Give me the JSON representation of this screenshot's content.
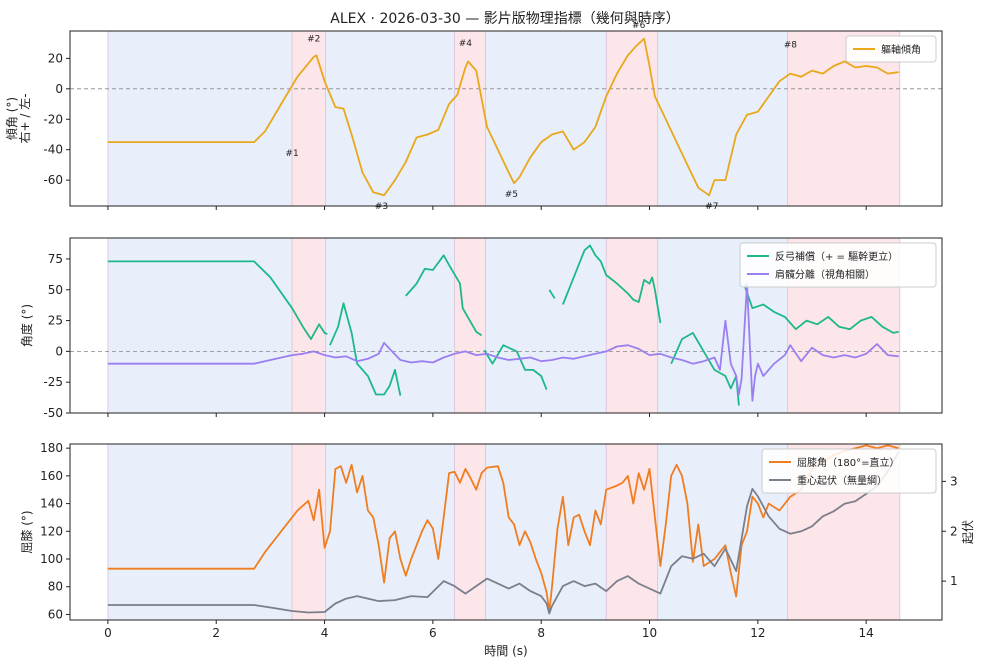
{
  "title": "ALEX · 2026-03-30 — 影片版物理指標（幾何與時序）",
  "chart_data": [
    {
      "type": "line",
      "ylabel": "傾角 (°)\n右+ / 左-",
      "ylim": [
        -77,
        38
      ],
      "yticks": [
        -60,
        -40,
        -20,
        0,
        20
      ],
      "xlim": [
        -0.7,
        15.4
      ],
      "zero_line": true,
      "legend_position": "top-right",
      "series": [
        {
          "name": "軀軸傾角",
          "color": "#e8a81a",
          "x": [
            0.0,
            2.7,
            2.9,
            3.2,
            3.5,
            3.8,
            3.85,
            4.0,
            4.2,
            4.35,
            4.5,
            4.7,
            4.9,
            5.1,
            5.3,
            5.5,
            5.7,
            5.9,
            6.1,
            6.3,
            6.45,
            6.6,
            6.65,
            6.8,
            7.0,
            7.2,
            7.4,
            7.5,
            7.6,
            7.8,
            8.0,
            8.2,
            8.4,
            8.6,
            8.8,
            9.0,
            9.2,
            9.4,
            9.6,
            9.75,
            9.9,
            10.0,
            10.1,
            10.3,
            10.5,
            10.7,
            10.9,
            11.1,
            11.2,
            11.4,
            11.6,
            11.8,
            12.0,
            12.2,
            12.4,
            12.6,
            12.8,
            13.0,
            13.2,
            13.4,
            13.6,
            13.8,
            14.0,
            14.2,
            14.4,
            14.6
          ],
          "values": [
            -35,
            -35,
            -28,
            -10,
            8,
            21,
            22,
            5,
            -12,
            -13,
            -30,
            -55,
            -68,
            -70,
            -60,
            -48,
            -32,
            -30,
            -27,
            -10,
            -4,
            14,
            18,
            12,
            -25,
            -40,
            -55,
            -62,
            -58,
            -45,
            -35,
            -30,
            -28,
            -40,
            -35,
            -25,
            -5,
            10,
            22,
            28,
            33,
            15,
            -5,
            -20,
            -35,
            -50,
            -65,
            -70,
            -60,
            -60,
            -30,
            -17,
            -15,
            -5,
            5,
            10,
            8,
            12,
            10,
            15,
            18,
            14,
            15,
            14,
            10,
            11
          ]
        }
      ],
      "annotations": [
        {
          "label": "#1",
          "x": 3.4,
          "y": -44
        },
        {
          "label": "#2",
          "x": 3.8,
          "y": 31
        },
        {
          "label": "#3",
          "x": 5.05,
          "y": -79
        },
        {
          "label": "#4",
          "x": 6.6,
          "y": 28
        },
        {
          "label": "#5",
          "x": 7.45,
          "y": -71
        },
        {
          "label": "#6",
          "x": 9.8,
          "y": 40
        },
        {
          "label": "#7",
          "x": 11.15,
          "y": -79
        },
        {
          "label": "#8",
          "x": 12.6,
          "y": 27
        }
      ]
    },
    {
      "type": "line",
      "ylabel": "角度 (°)",
      "ylim": [
        -50,
        92
      ],
      "yticks": [
        -50,
        -25,
        0,
        25,
        50,
        75
      ],
      "xlim": [
        -0.7,
        15.4
      ],
      "zero_line": true,
      "legend_position": "top-right",
      "series": [
        {
          "name": "反弓補償（+ = 驅幹更立）",
          "color": "#1db88a",
          "segments": [
            {
              "x": [
                0.0,
                2.7,
                3.0,
                3.4,
                3.6,
                3.75,
                3.9,
                4.0,
                4.05
              ],
              "values": [
                73,
                73,
                60,
                35,
                20,
                10,
                22,
                15,
                14
              ]
            },
            {
              "x": [
                4.1,
                4.25,
                4.35,
                4.5,
                4.6,
                4.8,
                4.95,
                5.1,
                5.2,
                5.3,
                5.4
              ],
              "values": [
                5,
                20,
                39,
                15,
                -10,
                -20,
                -35,
                -35,
                -28,
                -15,
                -36
              ]
            },
            {
              "x": [
                5.5,
                5.7,
                5.85,
                6.0,
                6.2,
                6.3,
                6.5,
                6.55,
                6.8,
                6.9
              ],
              "values": [
                45,
                55,
                67,
                66,
                78,
                70,
                55,
                35,
                16,
                13
              ]
            },
            {
              "x": [
                6.95,
                7.1,
                7.3,
                7.55,
                7.7,
                7.85,
                8.0,
                8.1
              ],
              "values": [
                1,
                -10,
                5,
                0,
                -15,
                -15,
                -20,
                -31
              ]
            },
            {
              "x": [
                8.15,
                8.25
              ],
              "values": [
                50,
                43
              ]
            },
            {
              "x": [
                8.4,
                8.6,
                8.8,
                8.9,
                9.0,
                9.1,
                9.2,
                9.4,
                9.6,
                9.7,
                9.8,
                9.9,
                10.0,
                10.05,
                10.1,
                10.2
              ],
              "values": [
                38,
                60,
                82,
                86,
                78,
                73,
                62,
                55,
                47,
                42,
                40,
                58,
                55,
                60,
                50,
                23
              ]
            },
            {
              "x": [
                10.4,
                10.6,
                10.8,
                11.0,
                11.2,
                11.4,
                11.5,
                11.6,
                11.65
              ],
              "values": [
                -10,
                10,
                15,
                0,
                -15,
                -20,
                -30,
                -20,
                -44
              ]
            },
            {
              "x": [
                11.75,
                11.9,
                12.1,
                12.3,
                12.5,
                12.7,
                12.9,
                13.1,
                13.3,
                13.5,
                13.7,
                13.9,
                14.1,
                14.3,
                14.5,
                14.6
              ],
              "values": [
                54,
                35,
                38,
                32,
                28,
                18,
                25,
                22,
                28,
                20,
                18,
                25,
                28,
                20,
                15,
                16
              ]
            }
          ]
        },
        {
          "name": "肩髖分離（視角相關）",
          "color": "#9b7ff0",
          "x": [
            0.0,
            2.7,
            3.0,
            3.4,
            3.6,
            3.8,
            4.0,
            4.2,
            4.4,
            4.6,
            4.8,
            5.0,
            5.1,
            5.2,
            5.4,
            5.6,
            5.8,
            6.0,
            6.2,
            6.4,
            6.6,
            6.8,
            7.0,
            7.2,
            7.4,
            7.6,
            7.8,
            8.0,
            8.2,
            8.4,
            8.6,
            8.8,
            9.0,
            9.2,
            9.4,
            9.6,
            9.8,
            10.0,
            10.2,
            10.4,
            10.6,
            10.8,
            11.0,
            11.2,
            11.3,
            11.4,
            11.5,
            11.6,
            11.65,
            11.7,
            11.8,
            11.9,
            11.95,
            12.0,
            12.1,
            12.3,
            12.5,
            12.6,
            12.8,
            13.0,
            13.2,
            13.4,
            13.6,
            13.8,
            14.0,
            14.2,
            14.4,
            14.6
          ],
          "values": [
            -10,
            -10,
            -7,
            -3,
            -2,
            0,
            -3,
            -5,
            -4,
            -8,
            -6,
            -2,
            7,
            2,
            -7,
            -9,
            -8,
            -9,
            -5,
            -2,
            0,
            -3,
            -2,
            -5,
            -7,
            -6,
            -5,
            -8,
            -7,
            -5,
            -6,
            -4,
            -2,
            0,
            4,
            5,
            2,
            -3,
            -2,
            -5,
            -7,
            -10,
            -8,
            -5,
            -15,
            25,
            -10,
            -20,
            -35,
            -22,
            55,
            -40,
            -20,
            -10,
            -20,
            -10,
            -3,
            5,
            -8,
            3,
            -3,
            -5,
            -3,
            -5,
            -2,
            6,
            -3,
            -4
          ]
        }
      ]
    },
    {
      "type": "line",
      "ylabel": "屈膝 (°)",
      "y2label": "起伏",
      "ylim": [
        56,
        183
      ],
      "y2lim": [
        0.22,
        3.75
      ],
      "yticks": [
        60,
        80,
        100,
        120,
        140,
        160,
        180
      ],
      "y2ticks": [
        1,
        2,
        3
      ],
      "xlabel": "時間 (s)",
      "xlim": [
        -0.7,
        15.4
      ],
      "xticks": [
        0,
        2,
        4,
        6,
        8,
        10,
        12,
        14
      ],
      "legend_position": "top-right",
      "series": [
        {
          "name": "屈膝角（180°=直立）",
          "color": "#f07d1f",
          "axis": "left",
          "x": [
            0.0,
            2.7,
            2.9,
            3.2,
            3.5,
            3.7,
            3.8,
            3.9,
            4.0,
            4.1,
            4.2,
            4.3,
            4.4,
            4.5,
            4.6,
            4.7,
            4.8,
            4.9,
            5.0,
            5.1,
            5.2,
            5.3,
            5.4,
            5.5,
            5.6,
            5.8,
            5.9,
            6.0,
            6.1,
            6.2,
            6.3,
            6.4,
            6.5,
            6.6,
            6.7,
            6.8,
            6.9,
            7.0,
            7.2,
            7.3,
            7.4,
            7.5,
            7.6,
            7.7,
            7.8,
            7.9,
            8.0,
            8.1,
            8.15,
            8.2,
            8.3,
            8.4,
            8.5,
            8.6,
            8.7,
            8.8,
            8.9,
            9.0,
            9.1,
            9.2,
            9.4,
            9.5,
            9.6,
            9.7,
            9.8,
            9.9,
            10.0,
            10.1,
            10.2,
            10.3,
            10.4,
            10.5,
            10.6,
            10.7,
            10.8,
            10.9,
            11.0,
            11.2,
            11.4,
            11.5,
            11.6,
            11.7,
            11.8,
            11.9,
            12.0,
            12.1,
            12.2,
            12.4,
            12.6,
            12.8,
            13.0,
            13.2,
            13.4,
            13.6,
            13.8,
            14.0,
            14.2,
            14.4,
            14.6
          ],
          "values": [
            93,
            93,
            105,
            120,
            135,
            142,
            128,
            150,
            108,
            120,
            165,
            167,
            155,
            168,
            148,
            160,
            135,
            130,
            110,
            83,
            115,
            120,
            100,
            88,
            100,
            120,
            128,
            122,
            100,
            130,
            162,
            163,
            155,
            165,
            158,
            150,
            162,
            166,
            167,
            155,
            130,
            125,
            110,
            120,
            112,
            100,
            90,
            76,
            62,
            80,
            122,
            145,
            110,
            130,
            132,
            120,
            110,
            135,
            125,
            150,
            153,
            155,
            160,
            140,
            162,
            150,
            165,
            130,
            95,
            125,
            160,
            168,
            160,
            140,
            98,
            125,
            95,
            100,
            110,
            90,
            73,
            110,
            120,
            145,
            140,
            130,
            140,
            135,
            145,
            150,
            165,
            170,
            175,
            178,
            180,
            182,
            180,
            182,
            180
          ]
        },
        {
          "name": "重心起伏（無量綱）",
          "color": "#7b7f8c",
          "axis": "right",
          "x": [
            0.0,
            2.7,
            3.0,
            3.4,
            3.7,
            4.0,
            4.2,
            4.4,
            4.6,
            4.8,
            5.0,
            5.3,
            5.6,
            5.9,
            6.2,
            6.4,
            6.6,
            6.8,
            7.0,
            7.2,
            7.4,
            7.6,
            7.8,
            8.0,
            8.1,
            8.15,
            8.2,
            8.4,
            8.6,
            8.8,
            9.0,
            9.2,
            9.4,
            9.6,
            9.8,
            10.0,
            10.2,
            10.4,
            10.6,
            10.8,
            11.0,
            11.2,
            11.4,
            11.6,
            11.8,
            11.9,
            12.0,
            12.2,
            12.4,
            12.6,
            12.8,
            13.0,
            13.2,
            13.4,
            13.6,
            13.8,
            14.0,
            14.2,
            14.4,
            14.6
          ],
          "values": [
            0.52,
            0.52,
            0.47,
            0.4,
            0.37,
            0.38,
            0.55,
            0.65,
            0.7,
            0.65,
            0.6,
            0.62,
            0.7,
            0.68,
            1.0,
            0.9,
            0.75,
            0.9,
            1.05,
            0.95,
            0.85,
            0.95,
            0.8,
            0.7,
            0.55,
            0.35,
            0.5,
            0.9,
            1.0,
            0.9,
            0.95,
            0.8,
            1.0,
            1.1,
            0.95,
            0.85,
            0.75,
            1.3,
            1.5,
            1.45,
            1.55,
            1.3,
            1.65,
            1.2,
            2.5,
            2.85,
            2.7,
            2.3,
            2.05,
            1.95,
            2.0,
            2.1,
            2.3,
            2.4,
            2.55,
            2.6,
            2.75,
            2.9,
            3.2,
            3.6
          ]
        }
      ]
    }
  ],
  "phase_bands": [
    {
      "start": 0.0,
      "end": 3.4,
      "type": "blue"
    },
    {
      "start": 3.4,
      "end": 4.02,
      "type": "red"
    },
    {
      "start": 4.02,
      "end": 6.4,
      "type": "blue"
    },
    {
      "start": 6.4,
      "end": 6.97,
      "type": "red"
    },
    {
      "start": 6.97,
      "end": 9.2,
      "type": "blue"
    },
    {
      "start": 9.2,
      "end": 10.15,
      "type": "red"
    },
    {
      "start": 10.15,
      "end": 12.55,
      "type": "blue"
    },
    {
      "start": 12.55,
      "end": 14.62,
      "type": "red"
    }
  ],
  "colors": {
    "band_blue": "#e8effb",
    "band_red": "#fde6e9",
    "band_edge": "#d9c3d6",
    "zero_line": "#888888",
    "axis": "#222222"
  }
}
